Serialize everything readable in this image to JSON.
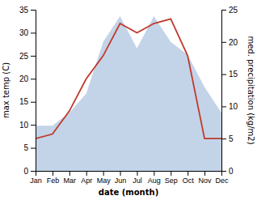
{
  "chart_data": {
    "type": "line",
    "x_label": "date (month)",
    "y_label": "max temp (C)",
    "y2_label": "med. precipitation (kg/m2)",
    "categories": [
      "Jan",
      "Feb",
      "Mar",
      "Apr",
      "May",
      "Jun",
      "Jul",
      "Aug",
      "Sep",
      "Oct",
      "Nov",
      "Dec"
    ],
    "series": [
      {
        "type": "area",
        "axis": "y2",
        "color": "#b8cce4",
        "values": [
          7,
          7,
          9,
          12,
          20,
          24,
          19,
          24,
          20,
          18,
          13,
          9
        ]
      },
      {
        "type": "line",
        "color": "#c0392b",
        "values": [
          7,
          8,
          13,
          20,
          25,
          32,
          30,
          32,
          33,
          25,
          7,
          7
        ]
      }
    ],
    "ylim": [
      0,
      35
    ],
    "yticks": [
      0,
      5,
      10,
      15,
      20,
      25,
      30,
      35
    ],
    "y2lim": [
      0,
      25
    ],
    "y2ticks": [
      0,
      5,
      10,
      15,
      20,
      25
    ],
    "grid": false
  }
}
